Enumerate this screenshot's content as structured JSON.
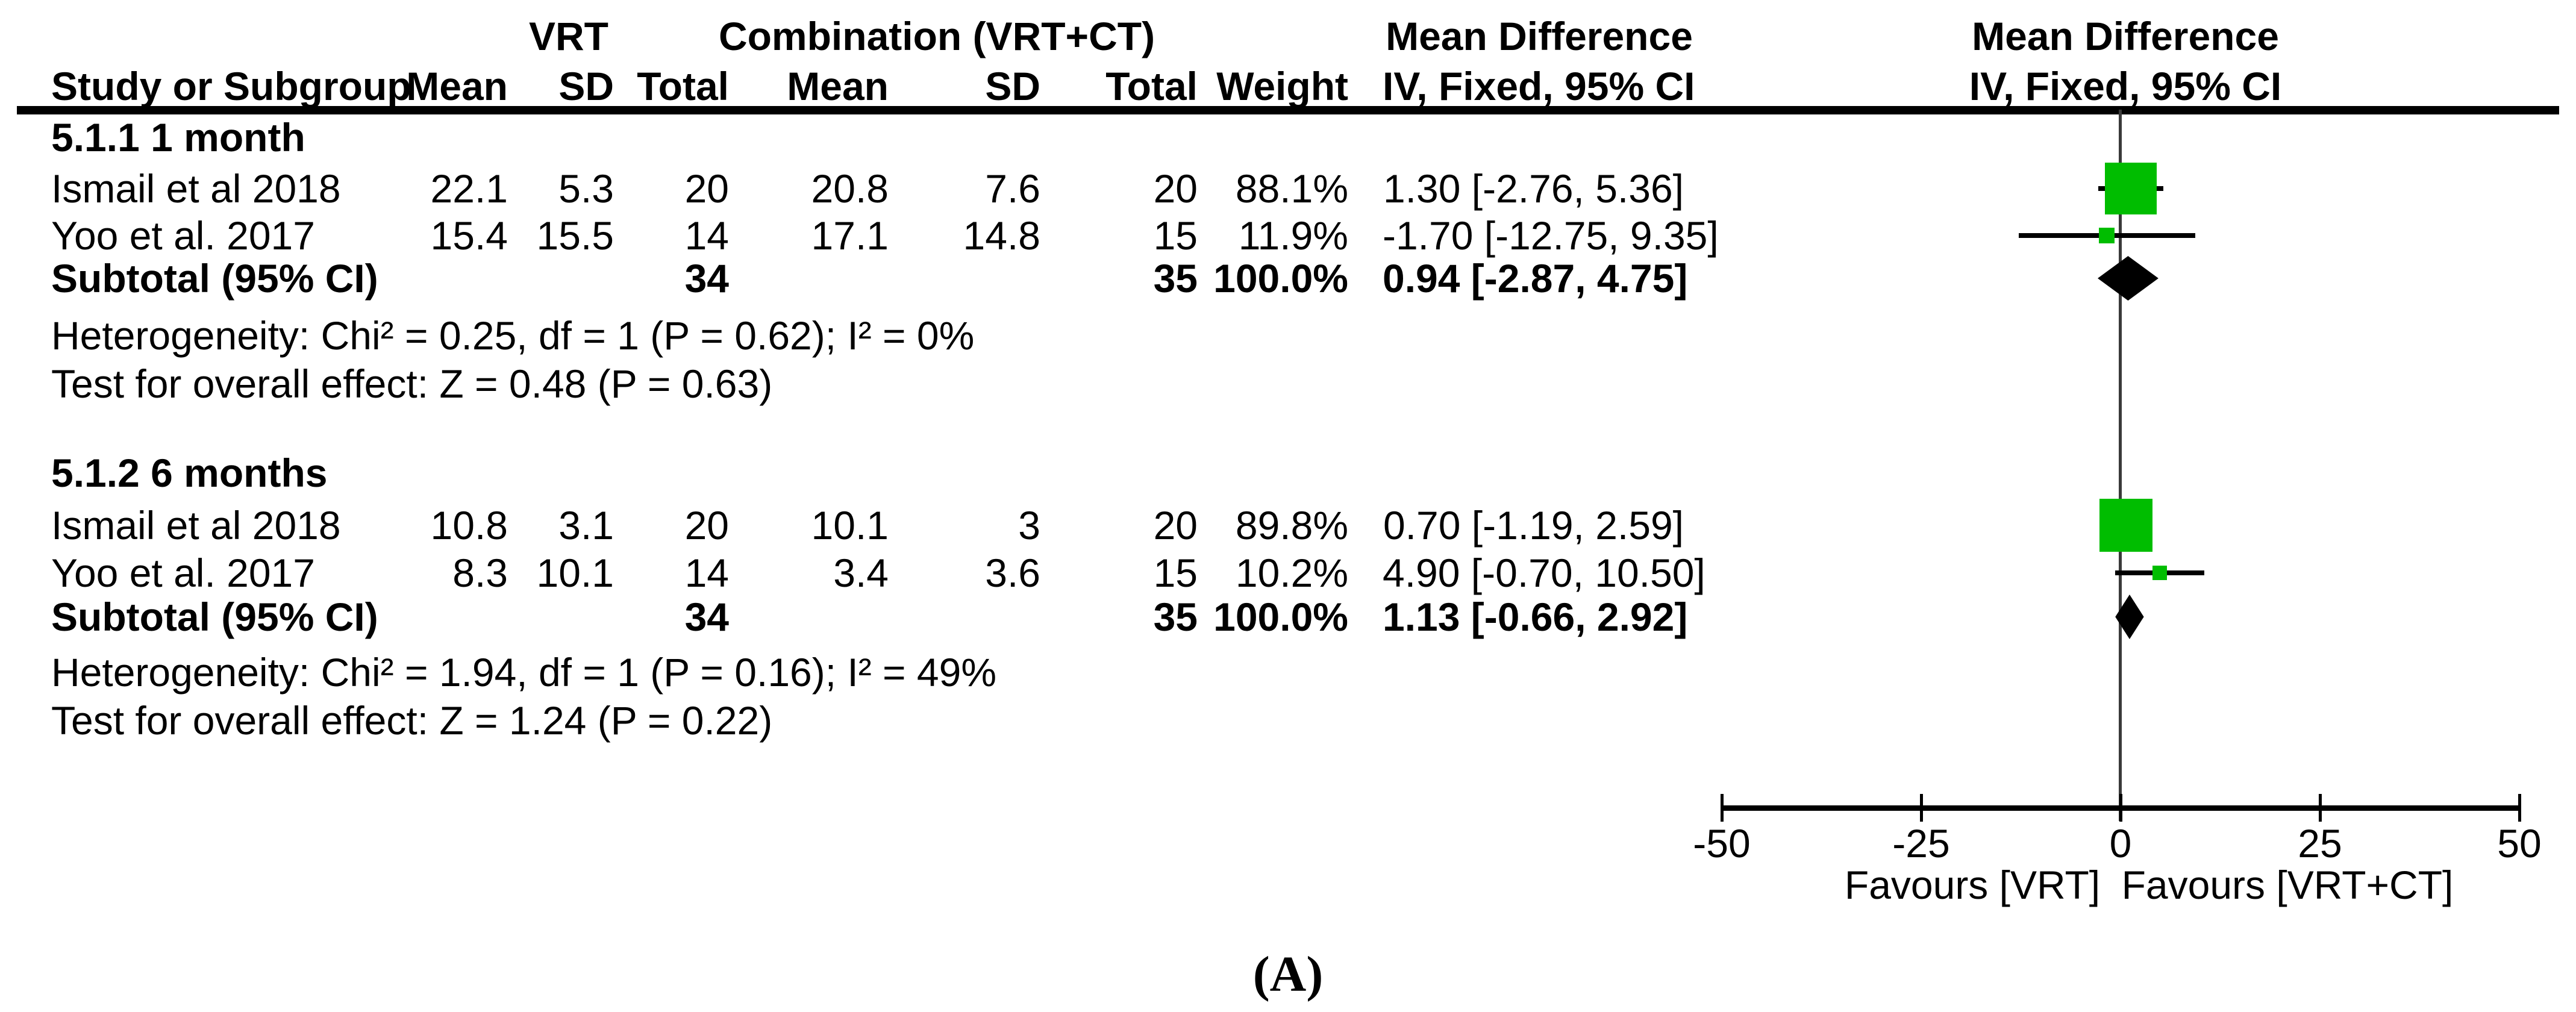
{
  "caption": "(A)",
  "table": {
    "col1": "Study or Subgroup",
    "group1": "VRT",
    "group2": "Combination (VRT+CT)",
    "mean": "Mean",
    "sd": "SD",
    "total": "Total",
    "weight": "Weight",
    "md_title": "Mean Difference",
    "md_sub": "IV, Fixed, 95% CI"
  },
  "chart_data": {
    "type": "forest",
    "effect_measure": "Mean Difference",
    "model": "IV, Fixed, 95% CI",
    "axis": {
      "min": -50,
      "max": 50,
      "ticks": [
        -50,
        -25,
        0,
        25,
        50
      ],
      "tick_labels": [
        "-50",
        "-25",
        "0",
        "25",
        "50"
      ],
      "favours_left": "Favours [VRT]",
      "favours_right": "Favours [VRT+CT]"
    },
    "colors": {
      "square": "#00bd00",
      "diamond": "#000000",
      "line": "#000000"
    },
    "groups": [
      {
        "label": "5.1.1 1 month",
        "studies": [
          {
            "name": "Ismail et al 2018",
            "mean1": "22.1",
            "sd1": "5.3",
            "n1": "20",
            "mean2": "20.8",
            "sd2": "7.6",
            "n2": "20",
            "weight": "88.1%",
            "ci_text": "1.30 [-2.76, 5.36]",
            "md": 1.3,
            "lo": -2.76,
            "hi": 5.36,
            "size": 86
          },
          {
            "name": "Yoo et al. 2017",
            "mean1": "15.4",
            "sd1": "15.5",
            "n1": "14",
            "mean2": "17.1",
            "sd2": "14.8",
            "n2": "15",
            "weight": "11.9%",
            "ci_text": "-1.70 [-12.75, 9.35]",
            "md": -1.7,
            "lo": -12.75,
            "hi": 9.35,
            "size": 26
          }
        ],
        "subtotal": {
          "label": "Subtotal (95% CI)",
          "n1": "34",
          "n2": "35",
          "weight": "100.0%",
          "ci_text": "0.94 [-2.87, 4.75]",
          "md": 0.94,
          "lo": -2.87,
          "hi": 4.75
        },
        "heterogeneity": "Heterogeneity: Chi² = 0.25, df = 1 (P = 0.62); I² = 0%",
        "overall": "Test for overall effect: Z = 0.48 (P = 0.63)"
      },
      {
        "label": "5.1.2 6 months",
        "studies": [
          {
            "name": "Ismail et al 2018",
            "mean1": "10.8",
            "sd1": "3.1",
            "n1": "20",
            "mean2": "10.1",
            "sd2": "3",
            "n2": "20",
            "weight": "89.8%",
            "ci_text": "0.70 [-1.19, 2.59]",
            "md": 0.7,
            "lo": -1.19,
            "hi": 2.59,
            "size": 88
          },
          {
            "name": "Yoo et al. 2017",
            "mean1": "8.3",
            "sd1": "10.1",
            "n1": "14",
            "mean2": "3.4",
            "sd2": "3.6",
            "n2": "15",
            "weight": "10.2%",
            "ci_text": "4.90 [-0.70, 10.50]",
            "md": 4.9,
            "lo": -0.7,
            "hi": 10.5,
            "size": 24
          }
        ],
        "subtotal": {
          "label": "Subtotal (95% CI)",
          "n1": "34",
          "n2": "35",
          "weight": "100.0%",
          "ci_text": "1.13 [-0.66, 2.92]",
          "md": 1.13,
          "lo": -0.66,
          "hi": 2.92
        },
        "heterogeneity": "Heterogeneity: Chi² = 1.94, df = 1 (P = 0.16); I² = 49%",
        "overall": "Test for overall effect: Z = 1.24 (P = 0.22)"
      }
    ]
  }
}
